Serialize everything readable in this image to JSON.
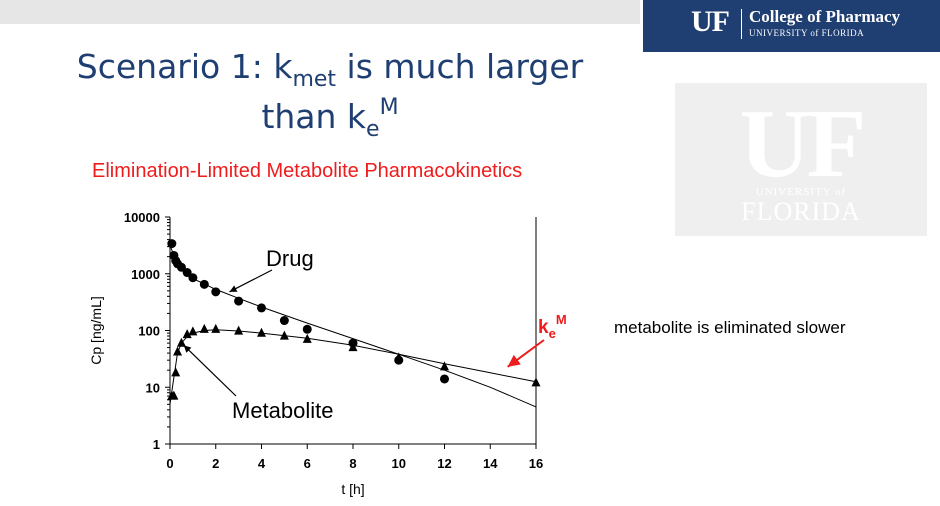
{
  "slide": {
    "title_line1_pre": "Scenario 1: k",
    "title_line1_sub": "met",
    "title_line1_post": " is much larger",
    "title_line2_pre": "than k",
    "title_line2_sub": "e",
    "title_line2_sup": "M",
    "subtitle": "Elimination-Limited Metabolite Pharmacokinetics",
    "side_note": "metabolite is eliminated slower"
  },
  "logo": {
    "mark": "UF",
    "college": "College of Pharmacy",
    "university": "UNIVERSITY of FLORIDA"
  },
  "watermark": {
    "mark": "UF",
    "university": "UNIVERSITY of",
    "florida": "FLORIDA"
  },
  "colors": {
    "title": "#1f3e72",
    "subtitle": "#ee1c1c",
    "arrow": "#ee1c1c",
    "logo_bg": "#1f3e72"
  },
  "chart_data": {
    "type": "scatter",
    "xlabel": "t [h]",
    "ylabel": "Cp [ng/mL]",
    "xlim": [
      0,
      16
    ],
    "ylim": [
      1,
      10000
    ],
    "y_scale": "log",
    "x_ticks": [
      "0",
      "2",
      "4",
      "6",
      "8",
      "10",
      "12",
      "14",
      "16"
    ],
    "y_ticks": [
      "1",
      "10",
      "100",
      "1000",
      "10000"
    ],
    "series": [
      {
        "name": "Drug",
        "marker": "circle",
        "points": [
          [
            0.08,
            3400
          ],
          [
            0.17,
            2100
          ],
          [
            0.25,
            1700
          ],
          [
            0.33,
            1500
          ],
          [
            0.5,
            1300
          ],
          [
            0.75,
            1050
          ],
          [
            1,
            850
          ],
          [
            1.5,
            650
          ],
          [
            2,
            480
          ],
          [
            3,
            330
          ],
          [
            4,
            250
          ],
          [
            5,
            150
          ],
          [
            6,
            105
          ],
          [
            8,
            60
          ],
          [
            10,
            30
          ],
          [
            12,
            14
          ]
        ],
        "fit": [
          [
            0,
            3200
          ],
          [
            0.25,
            1700
          ],
          [
            0.5,
            1200
          ],
          [
            1,
            820
          ],
          [
            2,
            530
          ],
          [
            3,
            370
          ],
          [
            4,
            260
          ],
          [
            6,
            135
          ],
          [
            8,
            72
          ],
          [
            10,
            38
          ],
          [
            12,
            20
          ],
          [
            14,
            10
          ],
          [
            16,
            4.5
          ]
        ]
      },
      {
        "name": "Metabolite",
        "marker": "triangle",
        "points": [
          [
            0.08,
            7
          ],
          [
            0.17,
            7
          ],
          [
            0.25,
            18
          ],
          [
            0.33,
            42
          ],
          [
            0.5,
            60
          ],
          [
            0.75,
            85
          ],
          [
            1,
            95
          ],
          [
            1.5,
            105
          ],
          [
            2,
            105
          ],
          [
            3,
            98
          ],
          [
            4,
            90
          ],
          [
            5,
            80
          ],
          [
            6,
            70
          ],
          [
            8,
            50
          ],
          [
            10,
            33
          ],
          [
            12,
            23
          ],
          [
            16,
            12
          ]
        ],
        "fit": [
          [
            0,
            5
          ],
          [
            0.17,
            15
          ],
          [
            0.33,
            40
          ],
          [
            0.5,
            60
          ],
          [
            0.75,
            78
          ],
          [
            1,
            90
          ],
          [
            1.5,
            100
          ],
          [
            2,
            103
          ],
          [
            3,
            98
          ],
          [
            4,
            90
          ],
          [
            6,
            73
          ],
          [
            8,
            55
          ],
          [
            10,
            38
          ],
          [
            12,
            26
          ],
          [
            14,
            18
          ],
          [
            16,
            12.5
          ]
        ]
      }
    ],
    "annotations": [
      {
        "text": "Drug",
        "point_to": [
          2.6,
          480
        ]
      },
      {
        "text": "Metabolite",
        "point_to": [
          0.6,
          55
        ]
      },
      {
        "text": "k",
        "sub": "e",
        "sup": "M",
        "color": "#ee1c1c",
        "point_to": [
          14.5,
          18
        ]
      }
    ]
  }
}
